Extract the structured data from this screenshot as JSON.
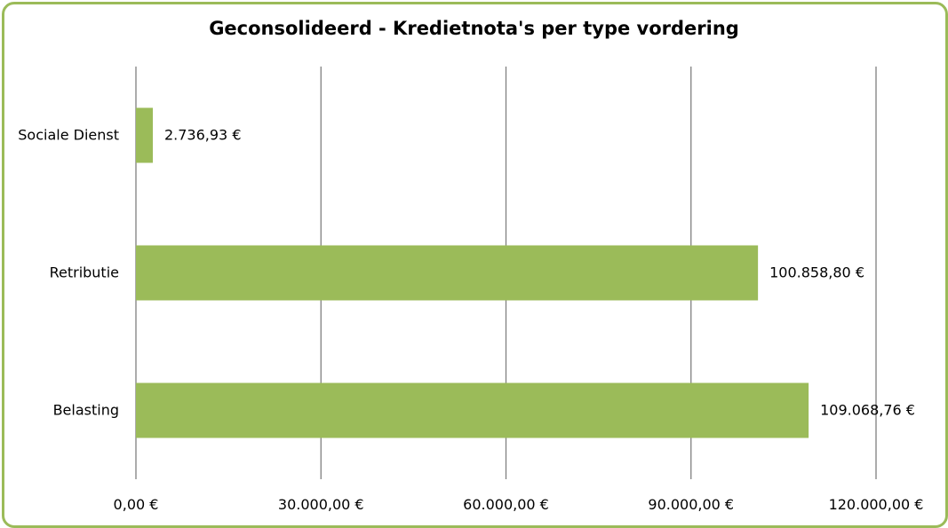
{
  "chart_data": {
    "type": "bar",
    "orientation": "horizontal",
    "title": "Geconsolideerd - Kredietnota's per type vordering",
    "categories": [
      "Sociale Dienst",
      "Retributie",
      "Belasting"
    ],
    "values": [
      2736.93,
      100858.8,
      109068.76
    ],
    "value_labels": [
      "2.736,93 €",
      "100.858,80 €",
      "109.068,76 €"
    ],
    "xlim": [
      0,
      120000
    ],
    "xticks": [
      0,
      30000,
      60000,
      90000,
      120000
    ],
    "xtick_labels": [
      "0,00 €",
      "30.000,00 €",
      "60.000,00 €",
      "90.000,00 €",
      "120.000,00 €"
    ],
    "xlabel": "",
    "ylabel": "",
    "grid": true,
    "legend": "none",
    "bar_color": "#9bbb59",
    "border_color": "#9bbb59",
    "gridline_color": "#808080"
  }
}
